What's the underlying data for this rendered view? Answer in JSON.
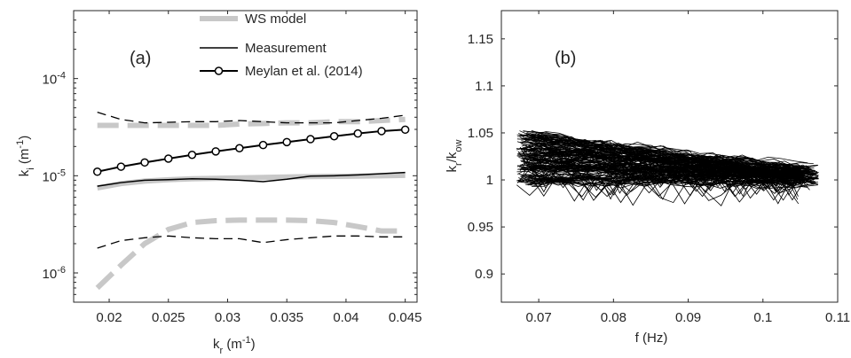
{
  "chart_data": [
    {
      "type": "line",
      "panel_label": "(a)",
      "title": "",
      "xlabel": "k_r (m^-1)",
      "ylabel": "k_i (m^-1)",
      "xlim": [
        0.017,
        0.046
      ],
      "ylim": [
        5e-07,
        0.0005
      ],
      "yscale": "log",
      "xticks": [
        0.02,
        0.025,
        0.03,
        0.035,
        0.04,
        0.045
      ],
      "xtick_labels": [
        "0.02",
        "0.025",
        "0.03",
        "0.035",
        "0.04",
        "0.045"
      ],
      "yticks": [
        1e-06,
        1e-05,
        0.0001
      ],
      "ytick_labels": [
        [
          "10",
          "-6"
        ],
        [
          "10",
          "-5"
        ],
        [
          "10",
          "-4"
        ]
      ],
      "grid": false,
      "legend_position": "top-right",
      "x": [
        0.019,
        0.021,
        0.023,
        0.025,
        0.027,
        0.029,
        0.031,
        0.033,
        0.035,
        0.037,
        0.039,
        0.041,
        0.043,
        0.045
      ],
      "series": [
        {
          "name": "WS model",
          "style": "gray-thick",
          "values": [
            7.5e-06,
            8.3e-06,
            8.8e-06,
            9.1e-06,
            9.3e-06,
            9.4e-06,
            9.5e-06,
            9.6e-06,
            9.7e-06,
            9.8e-06,
            9.85e-06,
            9.9e-06,
            1e-05,
            1.01e-05
          ]
        },
        {
          "name": "Measurement",
          "style": "black-solid",
          "values": [
            7.8e-06,
            8.5e-06,
            9e-06,
            9.1e-06,
            9.3e-06,
            9.2e-06,
            9e-06,
            8.7e-06,
            9.2e-06,
            9.9e-06,
            1e-05,
            1.02e-05,
            1.05e-05,
            1.08e-05
          ]
        },
        {
          "name": "Meylan et al. (2014)",
          "style": "black-circles",
          "values": [
            1.1e-05,
            1.24e-05,
            1.37e-05,
            1.5e-05,
            1.64e-05,
            1.78e-05,
            1.92e-05,
            2.07e-05,
            2.22e-05,
            2.38e-05,
            2.55e-05,
            2.72e-05,
            2.88e-05,
            2.98e-05
          ]
        },
        {
          "style": "gray-dashed",
          "values": [
            3.3e-05,
            3.3e-05,
            3.3e-05,
            3.3e-05,
            3.3e-05,
            3.3e-05,
            3.4e-05,
            3.45e-05,
            3.5e-05,
            3.5e-05,
            3.6e-05,
            3.6e-05,
            3.7e-05,
            3.8e-05
          ]
        },
        {
          "style": "black-dashed",
          "values": [
            4.5e-05,
            3.8e-05,
            3.5e-05,
            3.55e-05,
            3.6e-05,
            3.6e-05,
            3.7e-05,
            3.6e-05,
            3.5e-05,
            3.5e-05,
            3.5e-05,
            3.7e-05,
            3.9e-05,
            4.2e-05
          ]
        },
        {
          "style": "gray-dashed",
          "values": [
            7e-07,
            1.2e-06,
            2e-06,
            2.8e-06,
            3.3e-06,
            3.45e-06,
            3.5e-06,
            3.5e-06,
            3.5e-06,
            3.45e-06,
            3.3e-06,
            3e-06,
            2.7e-06,
            2.7e-06
          ]
        },
        {
          "style": "black-dashed",
          "values": [
            1.8e-06,
            2.15e-06,
            2.3e-06,
            2.4e-06,
            2.3e-06,
            2.25e-06,
            2.25e-06,
            2.05e-06,
            2.2e-06,
            2.3e-06,
            2.4e-06,
            2.4e-06,
            2.35e-06,
            2.35e-06
          ]
        }
      ]
    },
    {
      "type": "line",
      "panel_label": "(b)",
      "title": "",
      "xlabel": "f (Hz)",
      "ylabel": "k_r/k_ow",
      "xlim": [
        0.065,
        0.11
      ],
      "ylim": [
        0.87,
        1.18
      ],
      "xticks": [
        0.07,
        0.08,
        0.09,
        0.1,
        0.11
      ],
      "xtick_labels": [
        "0.07",
        "0.08",
        "0.09",
        "0.1",
        "0.11"
      ],
      "yticks": [
        0.9,
        0.95,
        1.0,
        1.05,
        1.1,
        1.15
      ],
      "ytick_labels": [
        "0.9",
        "0.95",
        "1",
        "1.05",
        "1.1",
        "1.15"
      ],
      "grid": false,
      "f_range": [
        0.067,
        0.106
      ],
      "start_band": [
        0.995,
        1.052
      ],
      "end_band": [
        0.993,
        1.022
      ],
      "description_series_count": 160
    }
  ]
}
